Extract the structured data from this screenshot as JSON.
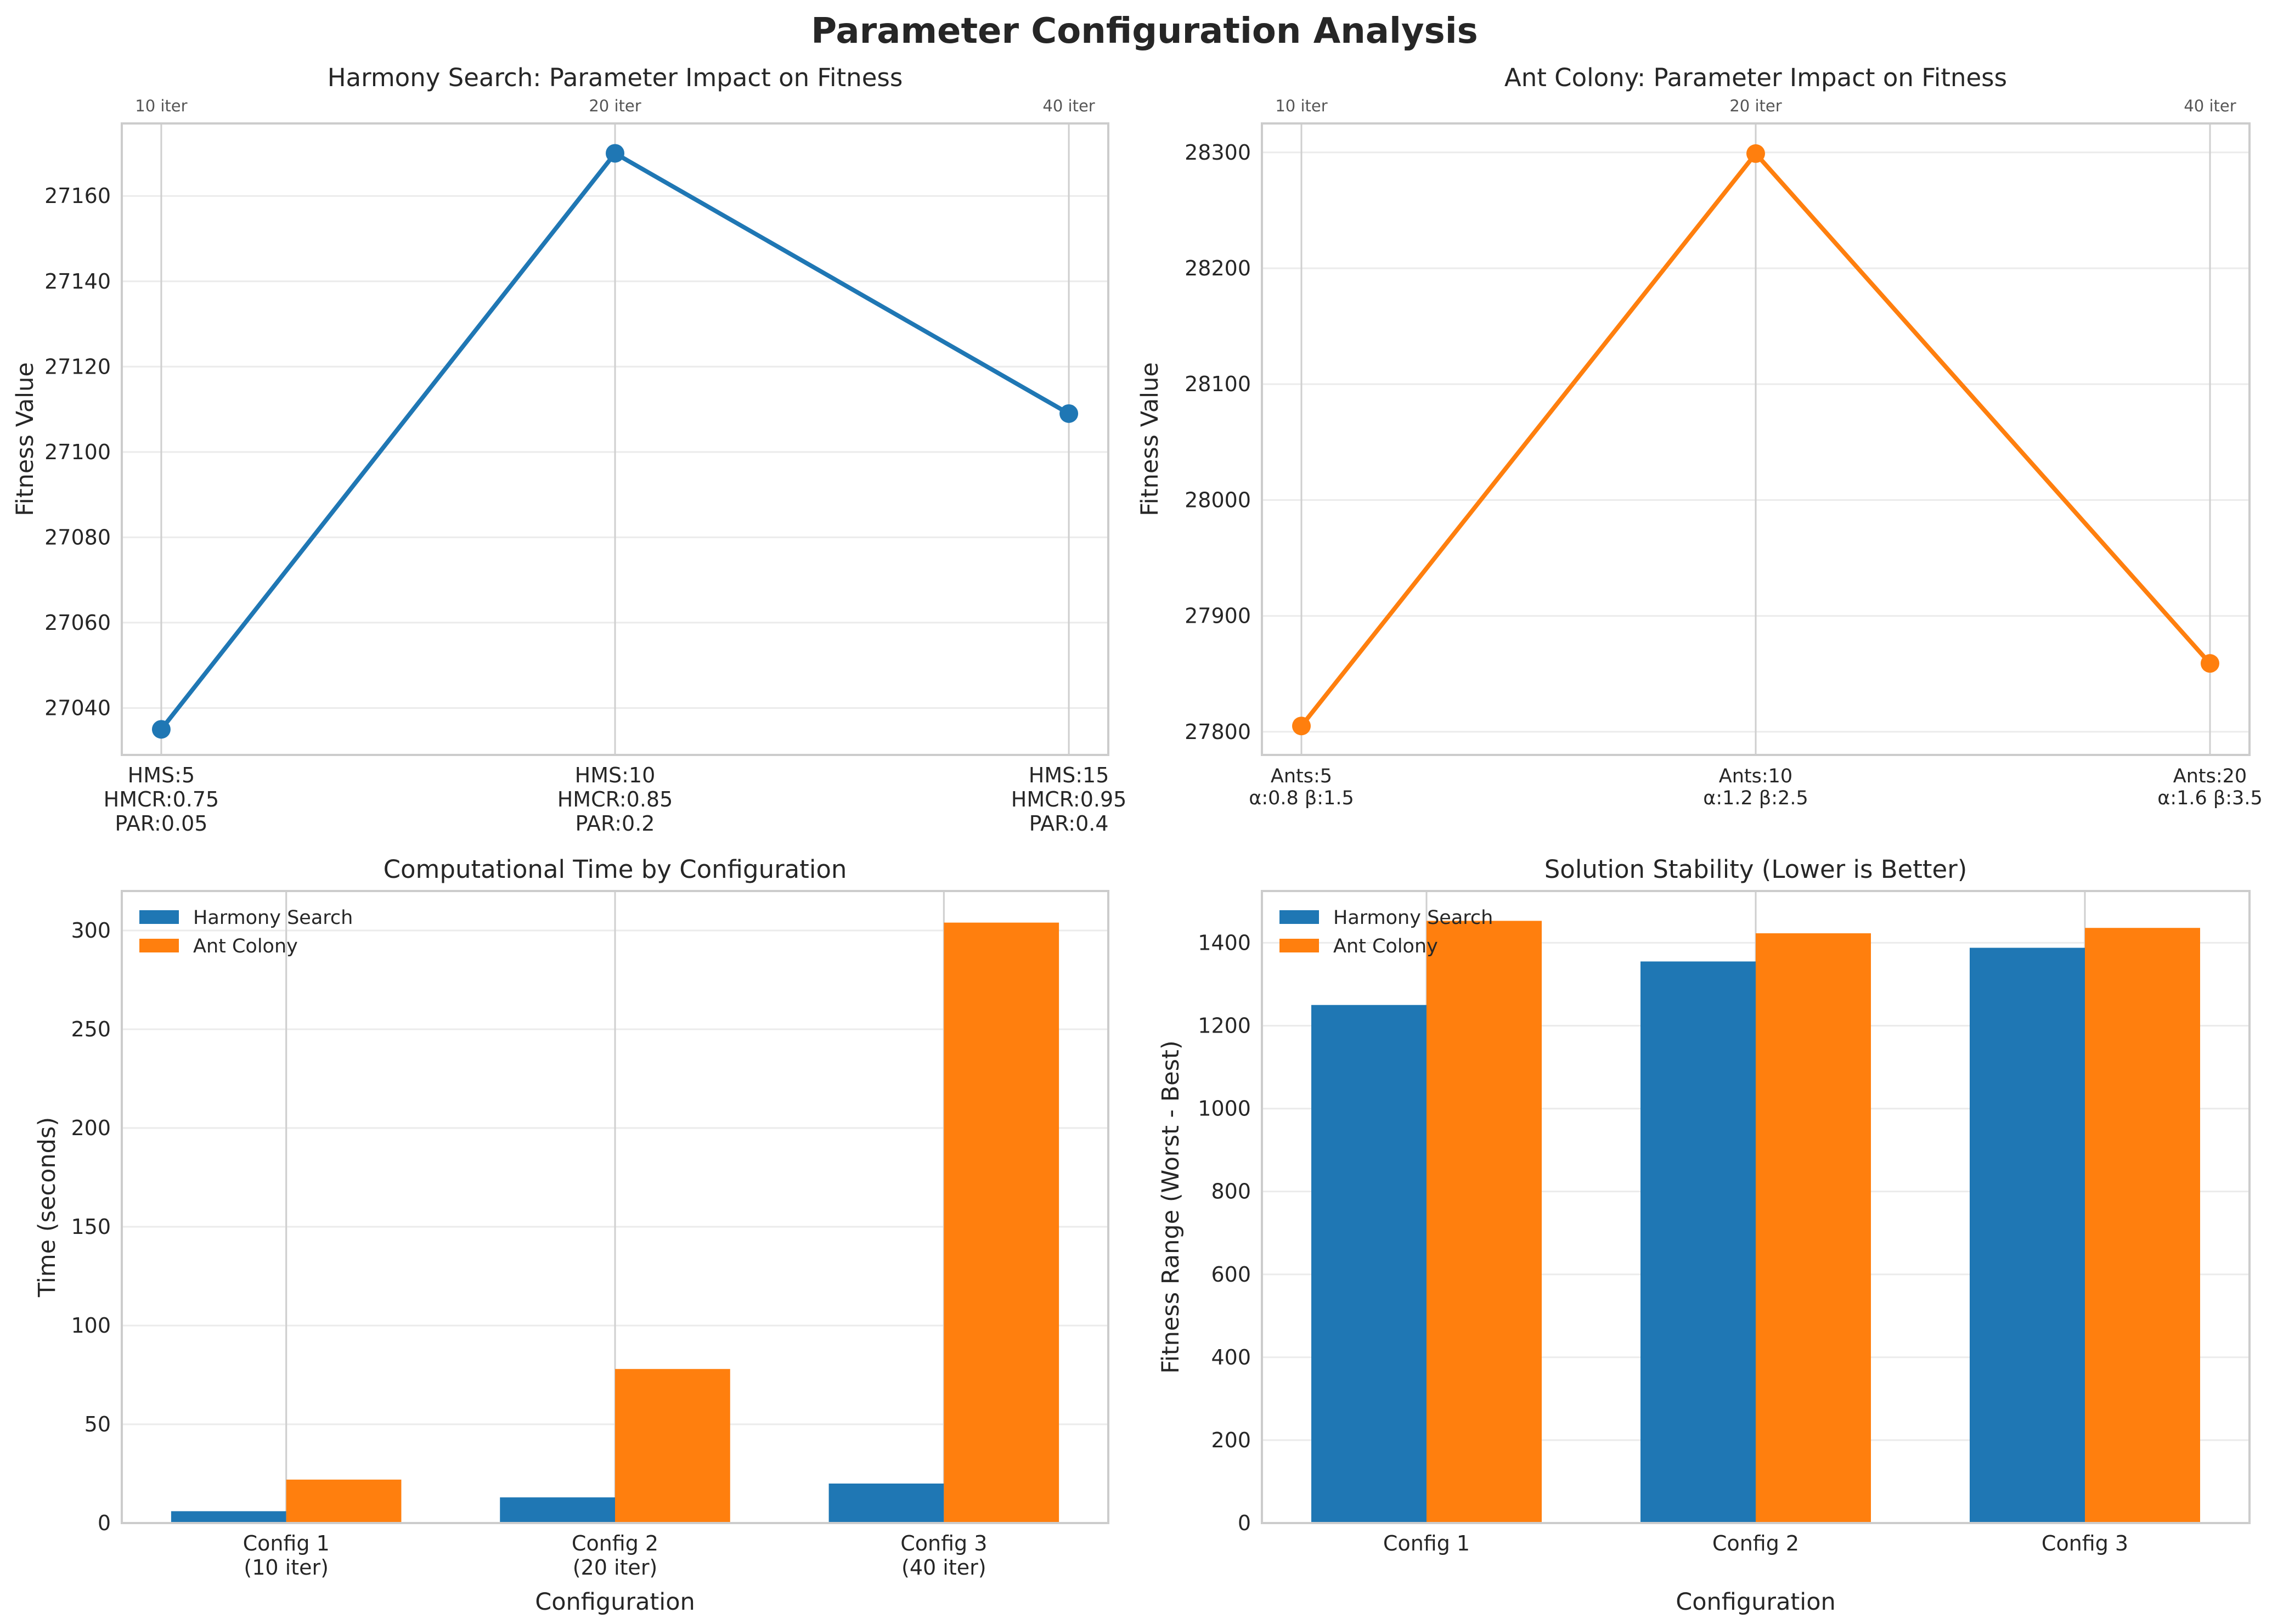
{
  "figure": {
    "title": "Parameter Configuration Analysis"
  },
  "colors": {
    "harmony": "#1f77b4",
    "ant": "#ff7f0e"
  },
  "chart_data": [
    {
      "type": "line",
      "title": "Harmony Search: Parameter Impact on Fitness",
      "xlabel": "",
      "ylabel": "Fitness Value",
      "categories": [
        [
          "HMS:5",
          "HMCR:0.75",
          "PAR:0.05"
        ],
        [
          "HMS:10",
          "HMCR:0.85",
          "PAR:0.2"
        ],
        [
          "HMS:15",
          "HMCR:0.95",
          "PAR:0.4"
        ]
      ],
      "top_ticks": [
        "10 iter",
        "20 iter",
        "40 iter"
      ],
      "series": [
        {
          "values": [
            27035,
            27170,
            27109
          ]
        }
      ],
      "yticks": [
        27040,
        27060,
        27080,
        27100,
        27120,
        27140,
        27160
      ],
      "ylim": [
        27029,
        27177
      ],
      "grid": true
    },
    {
      "type": "line",
      "title": "Ant Colony: Parameter Impact on Fitness",
      "xlabel": "",
      "ylabel": "Fitness Value",
      "categories": [
        [
          "Ants:5",
          "α:0.8 β:1.5"
        ],
        [
          "Ants:10",
          "α:1.2 β:2.5"
        ],
        [
          "Ants:20",
          "α:1.6 β:3.5"
        ]
      ],
      "top_ticks": [
        "10 iter",
        "20 iter",
        "40 iter"
      ],
      "series": [
        {
          "values": [
            27805,
            28299,
            27859
          ]
        }
      ],
      "yticks": [
        27800,
        27900,
        28000,
        28100,
        28200,
        28300
      ],
      "ylim": [
        27780,
        28325
      ],
      "grid": true
    },
    {
      "type": "bar",
      "title": "Computational Time by Configuration",
      "xlabel": "Configuration",
      "ylabel": "Time (seconds)",
      "categories": [
        [
          "Config 1",
          "(10 iter)"
        ],
        [
          "Config 2",
          "(20 iter)"
        ],
        [
          "Config 3",
          "(40 iter)"
        ]
      ],
      "series": [
        {
          "name": "Harmony Search",
          "values": [
            6,
            13,
            20
          ]
        },
        {
          "name": "Ant Colony",
          "values": [
            22,
            78,
            304
          ]
        }
      ],
      "yticks": [
        0,
        50,
        100,
        150,
        200,
        250,
        300
      ],
      "ylim": [
        0,
        320
      ],
      "legend": "top-left",
      "grid": true
    },
    {
      "type": "bar",
      "title": "Solution Stability (Lower is Better)",
      "xlabel": "Configuration",
      "ylabel": "Fitness Range (Worst - Best)",
      "categories": [
        [
          "Config 1"
        ],
        [
          "Config 2"
        ],
        [
          "Config 3"
        ]
      ],
      "series": [
        {
          "name": "Harmony Search",
          "values": [
            1250,
            1355,
            1388
          ]
        },
        {
          "name": "Ant Colony",
          "values": [
            1453,
            1423,
            1436
          ]
        }
      ],
      "yticks": [
        0,
        200,
        400,
        600,
        800,
        1000,
        1200,
        1400
      ],
      "ylim": [
        0,
        1525
      ],
      "legend": "top-left",
      "grid": true
    }
  ]
}
